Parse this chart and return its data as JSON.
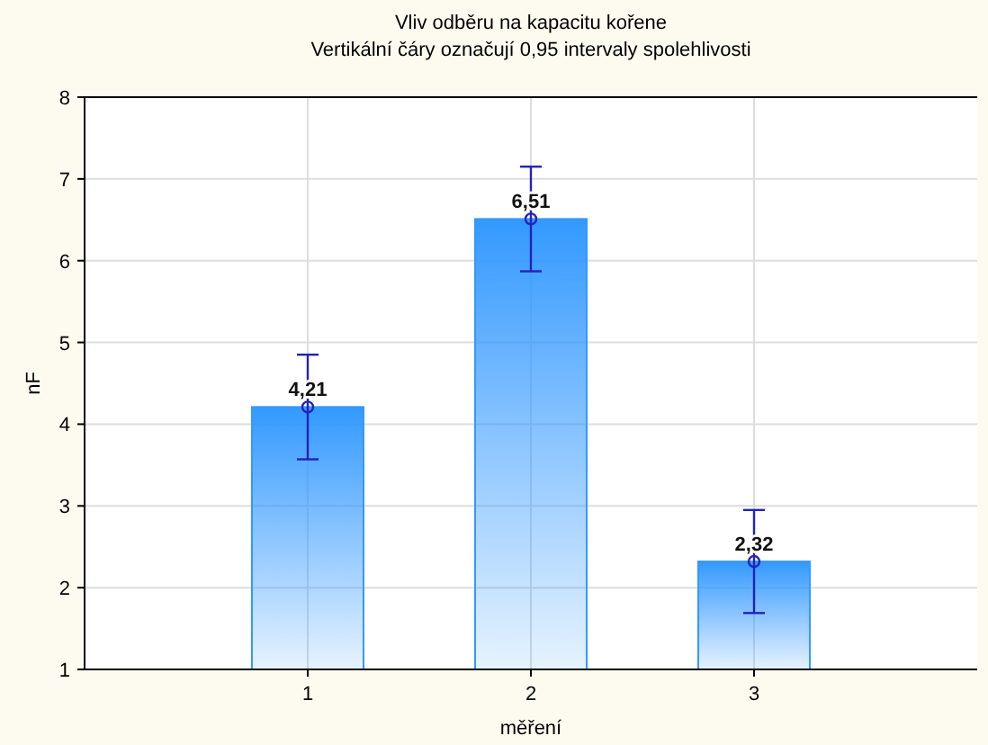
{
  "chart_data": {
    "type": "bar",
    "title": "Vliv odběru na kapacitu kořene",
    "subtitle": "Vertikální čáry označují 0,95 intervaly spolehlivosti",
    "xlabel": "měření",
    "ylabel": "nF",
    "categories": [
      "1",
      "2",
      "3"
    ],
    "series": [
      {
        "color": "#3399ff",
        "values": [
          4.21,
          6.51,
          2.32
        ],
        "errors": [
          0.64,
          0.64,
          0.63
        ],
        "value_labels": [
          "4,21",
          "6,51",
          "2,32"
        ]
      },
      {
        "type": "scatter",
        "color": "#2222bb",
        "marker": "circle",
        "x": [
          "1",
          "2",
          "3"
        ],
        "values": [
          4.21,
          6.51,
          2.32
        ]
      }
    ],
    "ylim": [
      1,
      8
    ],
    "yticks": [
      1,
      2,
      3,
      4,
      5,
      6,
      7,
      8
    ],
    "grid": true
  }
}
